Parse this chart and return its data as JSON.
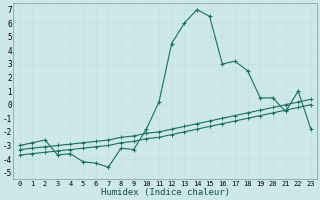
{
  "xlabel": "Humidex (Indice chaleur)",
  "bg_color": "#cce8e8",
  "grid_color": "#b0d0d0",
  "line_color": "#1a6e64",
  "xlim": [
    -0.5,
    23.5
  ],
  "ylim": [
    -5.5,
    7.5
  ],
  "xticks": [
    0,
    1,
    2,
    3,
    4,
    5,
    6,
    7,
    8,
    9,
    10,
    11,
    12,
    13,
    14,
    15,
    16,
    17,
    18,
    19,
    20,
    21,
    22,
    23
  ],
  "yticks": [
    -5,
    -4,
    -3,
    -2,
    -1,
    0,
    1,
    2,
    3,
    4,
    5,
    6,
    7
  ],
  "line1_x": [
    0,
    1,
    2,
    3,
    4,
    5,
    6,
    7,
    8,
    9,
    10,
    11,
    12,
    13,
    14,
    15,
    16,
    17,
    18,
    19,
    20,
    21,
    22,
    23
  ],
  "line1_y": [
    -3.0,
    -2.8,
    -2.6,
    -3.7,
    -3.6,
    -4.2,
    -4.3,
    -4.6,
    -3.2,
    -3.3,
    -1.8,
    0.2,
    4.5,
    6.0,
    7.0,
    6.5,
    3.0,
    3.2,
    2.5,
    0.5,
    0.5,
    -0.5,
    1.0,
    -1.8
  ],
  "line2_x": [
    0,
    1,
    2,
    3,
    4,
    5,
    6,
    7,
    8,
    9,
    10,
    11,
    12,
    13,
    14,
    15,
    16,
    17,
    18,
    19,
    20,
    21,
    22,
    23
  ],
  "line2_y": [
    -3.3,
    -3.2,
    -3.1,
    -3.0,
    -2.9,
    -2.8,
    -2.7,
    -2.6,
    -2.4,
    -2.3,
    -2.1,
    -2.0,
    -1.8,
    -1.6,
    -1.4,
    -1.2,
    -1.0,
    -0.8,
    -0.6,
    -0.4,
    -0.2,
    0.0,
    0.2,
    0.4
  ],
  "line3_x": [
    0,
    1,
    2,
    3,
    4,
    5,
    6,
    7,
    8,
    9,
    10,
    11,
    12,
    13,
    14,
    15,
    16,
    17,
    18,
    19,
    20,
    21,
    22,
    23
  ],
  "line3_y": [
    -3.7,
    -3.6,
    -3.5,
    -3.4,
    -3.3,
    -3.2,
    -3.1,
    -3.0,
    -2.8,
    -2.7,
    -2.5,
    -2.4,
    -2.2,
    -2.0,
    -1.8,
    -1.6,
    -1.4,
    -1.2,
    -1.0,
    -0.8,
    -0.6,
    -0.4,
    -0.2,
    0.0
  ]
}
